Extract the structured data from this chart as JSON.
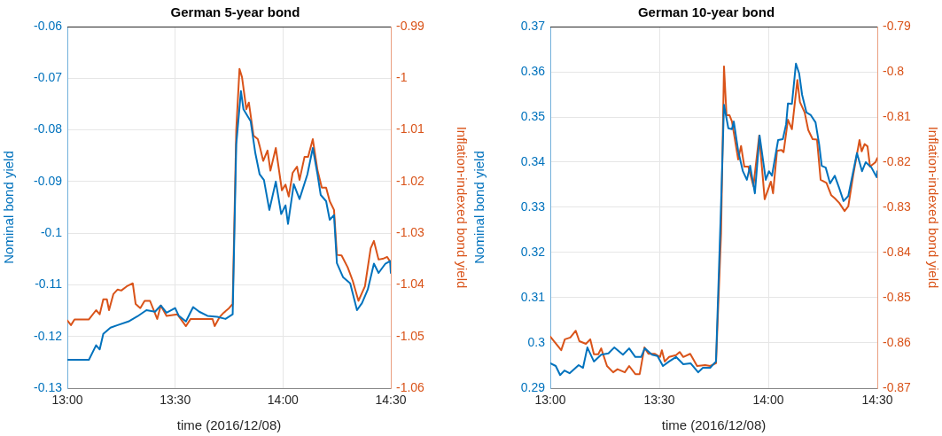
{
  "chart_data": [
    {
      "type": "line",
      "title": "German 5-year bond",
      "xlabel": "time (2016/12/08)",
      "ylabel": "Nominal bond yield",
      "y2label": "Inflation-indexed bond yield",
      "grid": true,
      "marker": "none",
      "line_style": "solid",
      "xlim": [
        13,
        14.5
      ],
      "xticks": [
        {
          "value": 13,
          "label": "13:00"
        },
        {
          "value": 13.5,
          "label": "13:30"
        },
        {
          "value": 14,
          "label": "14:00"
        },
        {
          "value": 14.5,
          "label": "14:30"
        }
      ],
      "ylim": [
        -0.13,
        -0.06
      ],
      "yticks": [
        -0.13,
        -0.12,
        -0.11,
        -0.1,
        -0.09,
        -0.08,
        -0.07,
        -0.06
      ],
      "y2lim": [
        -1.06,
        -0.99
      ],
      "y2ticks": [
        -1.06,
        -1.05,
        -1.04,
        -1.03,
        -1.02,
        -1.01,
        -1,
        -0.99
      ],
      "series": [
        {
          "color": "#0072bd",
          "axis": "y",
          "x": [
            13,
            13.025,
            13.1,
            13.1333,
            13.15,
            13.1667,
            13.2,
            13.2333,
            13.2833,
            13.325,
            13.3667,
            13.4067,
            13.4333,
            13.46,
            13.5,
            13.5167,
            13.55,
            13.5833,
            13.6117,
            13.65,
            13.695,
            13.7333,
            13.7667,
            13.7833,
            13.805,
            13.8167,
            13.85,
            13.8717,
            13.8917,
            13.9117,
            13.9367,
            13.9667,
            13.9917,
            14.0117,
            14.0233,
            14.05,
            14.0767,
            14.1133,
            14.1383,
            14.16,
            14.175,
            14.2,
            14.2167,
            14.2367,
            14.25,
            14.2783,
            14.3117,
            14.3433,
            14.3667,
            14.3933,
            14.4217,
            14.4433,
            14.475,
            14.4967,
            14.5
          ],
          "values": [
            -0.1245,
            -0.1245,
            -0.1245,
            -0.1217,
            -0.1225,
            -0.1195,
            -0.1183,
            -0.1178,
            -0.1171,
            -0.1161,
            -0.1149,
            -0.1152,
            -0.114,
            -0.1154,
            -0.1145,
            -0.116,
            -0.1171,
            -0.1143,
            -0.1152,
            -0.116,
            -0.1162,
            -0.1166,
            -0.1157,
            -0.0828,
            -0.0725,
            -0.076,
            -0.0783,
            -0.0845,
            -0.0886,
            -0.0897,
            -0.0955,
            -0.09,
            -0.0963,
            -0.0946,
            -0.0982,
            -0.0905,
            -0.0934,
            -0.0886,
            -0.0835,
            -0.0886,
            -0.0926,
            -0.0938,
            -0.0974,
            -0.0965,
            -0.1058,
            -0.1085,
            -0.1097,
            -0.1149,
            -0.1135,
            -0.1109,
            -0.1059,
            -0.1077,
            -0.1059,
            -0.1054,
            -0.1077
          ]
        },
        {
          "color": "#d95319",
          "axis": "y2",
          "x": [
            13,
            13.0167,
            13.0333,
            13.1,
            13.1333,
            13.15,
            13.1667,
            13.1833,
            13.1933,
            13.2133,
            13.2333,
            13.25,
            13.275,
            13.3033,
            13.3167,
            13.3383,
            13.3583,
            13.3833,
            13.4167,
            13.4333,
            13.46,
            13.51,
            13.55,
            13.5717,
            13.6733,
            13.6833,
            13.7067,
            13.725,
            13.75,
            13.7667,
            13.7833,
            13.7983,
            13.81,
            13.83,
            13.8417,
            13.8633,
            13.8833,
            13.8917,
            13.9083,
            13.9283,
            13.9417,
            13.9667,
            13.995,
            14.0117,
            14.0267,
            14.045,
            14.065,
            14.0767,
            14.1,
            14.1167,
            14.1383,
            14.16,
            14.18,
            14.2,
            14.2167,
            14.2367,
            14.25,
            14.2717,
            14.3,
            14.3233,
            14.35,
            14.38,
            14.4067,
            14.4217,
            14.4433,
            14.4667,
            14.4833,
            14.5
          ],
          "values": [
            -1.0469,
            -1.0478,
            -1.0467,
            -1.0467,
            -1.0449,
            -1.0457,
            -1.0428,
            -1.0428,
            -1.0449,
            -1.0418,
            -1.0409,
            -1.0411,
            -1.0403,
            -1.0397,
            -1.0437,
            -1.0445,
            -1.0431,
            -1.0431,
            -1.0466,
            -1.044,
            -1.046,
            -1.0457,
            -1.048,
            -1.0466,
            -1.0466,
            -1.048,
            -1.0462,
            -1.0454,
            -1.0445,
            -1.0437,
            -1.01,
            -0.9982,
            -0.9998,
            -1.006,
            -1.0047,
            -1.0111,
            -1.0118,
            -1.0131,
            -1.016,
            -1.014,
            -1.0179,
            -1.0135,
            -1.0217,
            -1.0206,
            -1.0229,
            -1.0183,
            -1.0171,
            -1.0197,
            -1.0152,
            -1.0152,
            -1.0118,
            -1.0178,
            -1.0212,
            -1.0212,
            -1.0238,
            -1.0255,
            -1.0342,
            -1.0343,
            -1.0366,
            -1.0392,
            -1.0431,
            -1.0403,
            -1.0329,
            -1.0315,
            -1.0351,
            -1.0349,
            -1.0346,
            -1.0357
          ]
        }
      ]
    },
    {
      "type": "line",
      "title": "German 10-year bond",
      "xlabel": "time (2016/12/08)",
      "ylabel": "Nominal bond yield",
      "y2label": "Inflation-indexed bond yield",
      "grid": true,
      "marker": "none",
      "line_style": "solid",
      "xlim": [
        13,
        14.5
      ],
      "xticks": [
        {
          "value": 13,
          "label": "13:00"
        },
        {
          "value": 13.5,
          "label": "13:30"
        },
        {
          "value": 14,
          "label": "14:00"
        },
        {
          "value": 14.5,
          "label": "14:30"
        }
      ],
      "ylim": [
        0.29,
        0.37
      ],
      "yticks": [
        0.29,
        0.3,
        0.31,
        0.32,
        0.33,
        0.34,
        0.35,
        0.36,
        0.37
      ],
      "y2lim": [
        -0.87,
        -0.79
      ],
      "y2ticks": [
        -0.87,
        -0.86,
        -0.85,
        -0.84,
        -0.83,
        -0.82,
        -0.81,
        -0.8,
        -0.79
      ],
      "series": [
        {
          "color": "#0072bd",
          "axis": "y",
          "x": [
            13,
            13.025,
            13.045,
            13.065,
            13.0883,
            13.13,
            13.15,
            13.17,
            13.2,
            13.2333,
            13.2667,
            13.2933,
            13.3333,
            13.3617,
            13.39,
            13.4167,
            13.4333,
            13.4667,
            13.4917,
            13.5167,
            13.545,
            13.5767,
            13.61,
            13.6433,
            13.6783,
            13.7,
            13.7333,
            13.76,
            13.7833,
            13.7967,
            13.8167,
            13.8333,
            13.8417,
            13.8617,
            13.8833,
            13.9017,
            13.9167,
            13.9383,
            13.96,
            13.9883,
            14.0033,
            14.0167,
            14.045,
            14.0667,
            14.0817,
            14.09,
            14.1083,
            14.1267,
            14.1417,
            14.155,
            14.175,
            14.195,
            14.2167,
            14.2333,
            14.245,
            14.2633,
            14.2833,
            14.305,
            14.325,
            14.345,
            14.3667,
            14.4067,
            14.43,
            14.4467,
            14.4733,
            14.4967,
            14.5
          ],
          "values": [
            0.2955,
            0.2949,
            0.2929,
            0.2939,
            0.2933,
            0.2951,
            0.2945,
            0.299,
            0.2959,
            0.2974,
            0.2977,
            0.299,
            0.2974,
            0.2988,
            0.2969,
            0.2969,
            0.2988,
            0.2974,
            0.2971,
            0.2949,
            0.2959,
            0.2969,
            0.2953,
            0.2955,
            0.2935,
            0.2945,
            0.2945,
            0.2959,
            0.3308,
            0.3527,
            0.3475,
            0.3473,
            0.349,
            0.3425,
            0.338,
            0.3361,
            0.3392,
            0.3331,
            0.3459,
            0.3361,
            0.338,
            0.337,
            0.3449,
            0.3451,
            0.3484,
            0.353,
            0.3529,
            0.3618,
            0.3596,
            0.3549,
            0.351,
            0.3504,
            0.3488,
            0.3439,
            0.3392,
            0.3388,
            0.3353,
            0.337,
            0.3343,
            0.3314,
            0.3325,
            0.342,
            0.338,
            0.34,
            0.3388,
            0.3367,
            0.338
          ]
        },
        {
          "color": "#d95319",
          "axis": "y2",
          "x": [
            13,
            13.05,
            13.0667,
            13.0917,
            13.1167,
            13.1333,
            13.1633,
            13.1833,
            13.2,
            13.22,
            13.2333,
            13.26,
            13.2883,
            13.3083,
            13.3417,
            13.3617,
            13.39,
            13.41,
            13.4317,
            13.45,
            13.48,
            13.5033,
            13.5117,
            13.525,
            13.545,
            13.5767,
            13.5933,
            13.61,
            13.6417,
            13.6733,
            13.71,
            13.7333,
            13.76,
            13.7833,
            13.7967,
            13.8083,
            13.8217,
            13.8333,
            13.8617,
            13.875,
            13.89,
            13.9083,
            13.9317,
            13.9583,
            13.9833,
            14.0117,
            14.0217,
            14.04,
            14.06,
            14.07,
            14.09,
            14.1083,
            14.1333,
            14.145,
            14.1667,
            14.1833,
            14.2033,
            14.2233,
            14.24,
            14.2667,
            14.2883,
            14.305,
            14.325,
            14.35,
            14.3667,
            14.39,
            14.4183,
            14.4283,
            14.4417,
            14.455,
            14.4667,
            14.4917,
            14.5
          ],
          "values": [
            -0.8586,
            -0.8616,
            -0.8592,
            -0.8588,
            -0.8573,
            -0.8596,
            -0.8602,
            -0.8592,
            -0.8625,
            -0.8625,
            -0.8612,
            -0.8651,
            -0.8665,
            -0.8658,
            -0.8665,
            -0.8651,
            -0.8669,
            -0.8669,
            -0.861,
            -0.8624,
            -0.8624,
            -0.8631,
            -0.8616,
            -0.8641,
            -0.8631,
            -0.8627,
            -0.862,
            -0.8631,
            -0.8624,
            -0.8651,
            -0.8649,
            -0.8651,
            -0.8645,
            -0.8357,
            -0.7988,
            -0.8096,
            -0.8096,
            -0.811,
            -0.8194,
            -0.8164,
            -0.821,
            -0.821,
            -0.8253,
            -0.8141,
            -0.8282,
            -0.8243,
            -0.8269,
            -0.8175,
            -0.8173,
            -0.8178,
            -0.8106,
            -0.8127,
            -0.8018,
            -0.8067,
            -0.809,
            -0.8129,
            -0.8149,
            -0.815,
            -0.8239,
            -0.8246,
            -0.8273,
            -0.828,
            -0.829,
            -0.8308,
            -0.8298,
            -0.8227,
            -0.8151,
            -0.8176,
            -0.816,
            -0.8165,
            -0.821,
            -0.82,
            -0.8191
          ]
        }
      ]
    }
  ]
}
